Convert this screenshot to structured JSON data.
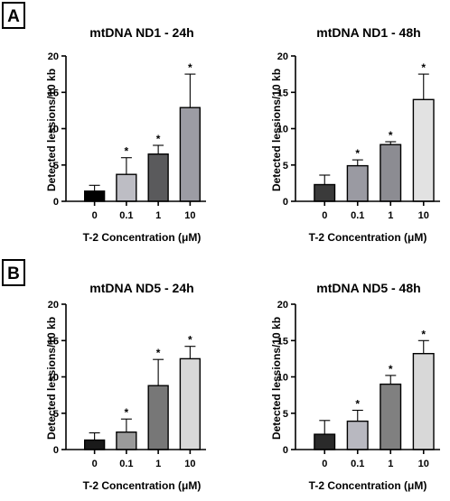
{
  "panels": [
    {
      "label": "A"
    },
    {
      "label": "B"
    }
  ],
  "chart_data": [
    {
      "type": "bar",
      "title": "mtDNA ND1 - 24h",
      "xlabel": "T-2 Concentration (μM)",
      "ylabel": "Detected lessions/10 kb",
      "categories": [
        "0",
        "0.1",
        "1",
        "10"
      ],
      "values": [
        1.4,
        3.7,
        6.5,
        12.9
      ],
      "errors": [
        0.8,
        2.3,
        1.2,
        4.6
      ],
      "significance": [
        "",
        "*",
        "*",
        "*"
      ],
      "colors": [
        "#000000",
        "#bdbdc4",
        "#5a5a5c",
        "#9c9ca4"
      ],
      "ylim": [
        0,
        20
      ],
      "yticks": [
        0,
        5,
        10,
        15,
        20
      ]
    },
    {
      "type": "bar",
      "title": "mtDNA ND1 - 48h",
      "xlabel": "T-2 Concentration (μM)",
      "ylabel": "Detected lessions/10 kb",
      "categories": [
        "0",
        "0.1",
        "1",
        "10"
      ],
      "values": [
        2.3,
        4.9,
        7.8,
        14.0
      ],
      "errors": [
        1.3,
        0.8,
        0.4,
        3.5
      ],
      "significance": [
        "",
        "*",
        "*",
        "*"
      ],
      "colors": [
        "#3a3a3a",
        "#9a9aa2",
        "#8c8c92",
        "#e2e2e2"
      ],
      "ylim": [
        0,
        20
      ],
      "yticks": [
        0,
        5,
        10,
        15,
        20
      ]
    },
    {
      "type": "bar",
      "title": "mtDNA ND5 - 24h",
      "xlabel": "T-2 Concentration (μM)",
      "ylabel": "Detected lessions/10 kb",
      "categories": [
        "0",
        "0.1",
        "1",
        "10"
      ],
      "values": [
        1.3,
        2.4,
        8.8,
        12.5
      ],
      "errors": [
        1.0,
        1.8,
        3.6,
        1.7
      ],
      "significance": [
        "",
        "*",
        "*",
        "*"
      ],
      "colors": [
        "#1a1a1a",
        "#9a9a9a",
        "#777777",
        "#d8d8d8"
      ],
      "ylim": [
        0,
        20
      ],
      "yticks": [
        0,
        5,
        10,
        15,
        20
      ]
    },
    {
      "type": "bar",
      "title": "mtDNA ND5 - 48h",
      "xlabel": "T-2 Concentration (μM)",
      "ylabel": "Detected lessions/10 kb",
      "categories": [
        "0",
        "0.1",
        "1",
        "10"
      ],
      "values": [
        2.1,
        3.9,
        9.0,
        13.2
      ],
      "errors": [
        1.9,
        1.5,
        1.2,
        1.8
      ],
      "significance": [
        "",
        "*",
        "*",
        "*"
      ],
      "colors": [
        "#2a2a2a",
        "#b8b8c0",
        "#808080",
        "#d8d8d8"
      ],
      "ylim": [
        0,
        20
      ],
      "yticks": [
        0,
        5,
        10,
        15,
        20
      ]
    }
  ]
}
